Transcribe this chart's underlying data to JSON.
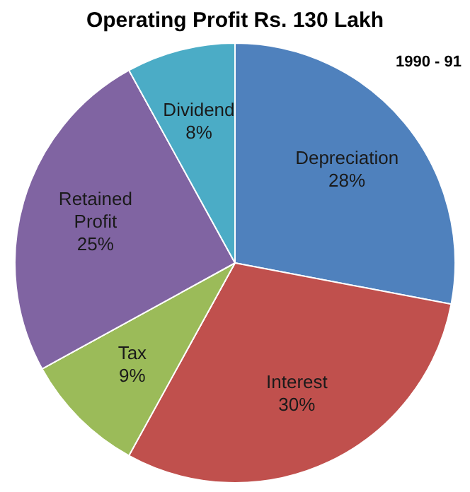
{
  "chart_data": {
    "type": "pie",
    "title": "Operating Profit Rs. 130 Lakh",
    "annotations": [
      "1990 - 91"
    ],
    "categories": [
      "Depreciation",
      "Interest",
      "Tax",
      "Retained Profit",
      "Dividend"
    ],
    "values": [
      28,
      30,
      9,
      25,
      8
    ],
    "value_labels": [
      "28%",
      "30%",
      "9%",
      "25%",
      "8%"
    ],
    "colors": [
      "#4f81bd",
      "#c0504d",
      "#9bbb59",
      "#8064a2",
      "#4bacc6"
    ],
    "legend": false
  }
}
